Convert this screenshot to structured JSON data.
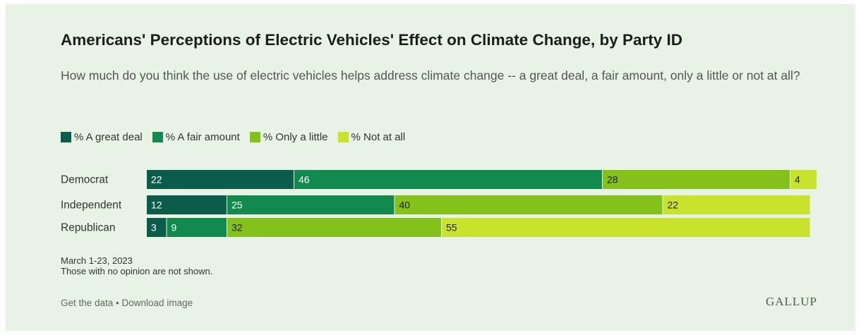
{
  "title": "Americans' Perceptions of Electric Vehicles' Effect on Climate Change, by Party ID",
  "subtitle": "How much do you think the use of electric vehicles helps address climate change -- a great deal, a fair amount, only a little or not at all?",
  "legend": [
    {
      "label": "% A great deal",
      "color": "#0b5c4a"
    },
    {
      "label": "% A fair amount",
      "color": "#128a4f"
    },
    {
      "label": "% Only a little",
      "color": "#84c21b"
    },
    {
      "label": "% Not at all",
      "color": "#c9e22b"
    }
  ],
  "note": {
    "date": "March 1-23, 2023",
    "caveat": "Those with no opinion are not shown."
  },
  "footer": {
    "links": "Get the data • Download image",
    "brand": "GALLUP"
  },
  "chart_data": {
    "type": "bar",
    "orientation": "horizontal",
    "stacked": true,
    "categories": [
      "Democrat",
      "Independent",
      "Republican"
    ],
    "series": [
      {
        "name": "% A great deal",
        "color": "#0b5c4a",
        "label_color": "#ffffff",
        "values": [
          22,
          12,
          3
        ]
      },
      {
        "name": "% A fair amount",
        "color": "#128a4f",
        "label_color": "#ffffff",
        "values": [
          46,
          25,
          9
        ]
      },
      {
        "name": "% Only a little",
        "color": "#84c21b",
        "label_color": "#1d1d1d",
        "values": [
          28,
          40,
          32
        ]
      },
      {
        "name": "% Not at all",
        "color": "#c9e22b",
        "label_color": "#1d1d1d",
        "values": [
          4,
          22,
          55
        ]
      }
    ],
    "xlim": [
      0,
      100
    ],
    "grid": false,
    "legend_position": "top-left"
  }
}
